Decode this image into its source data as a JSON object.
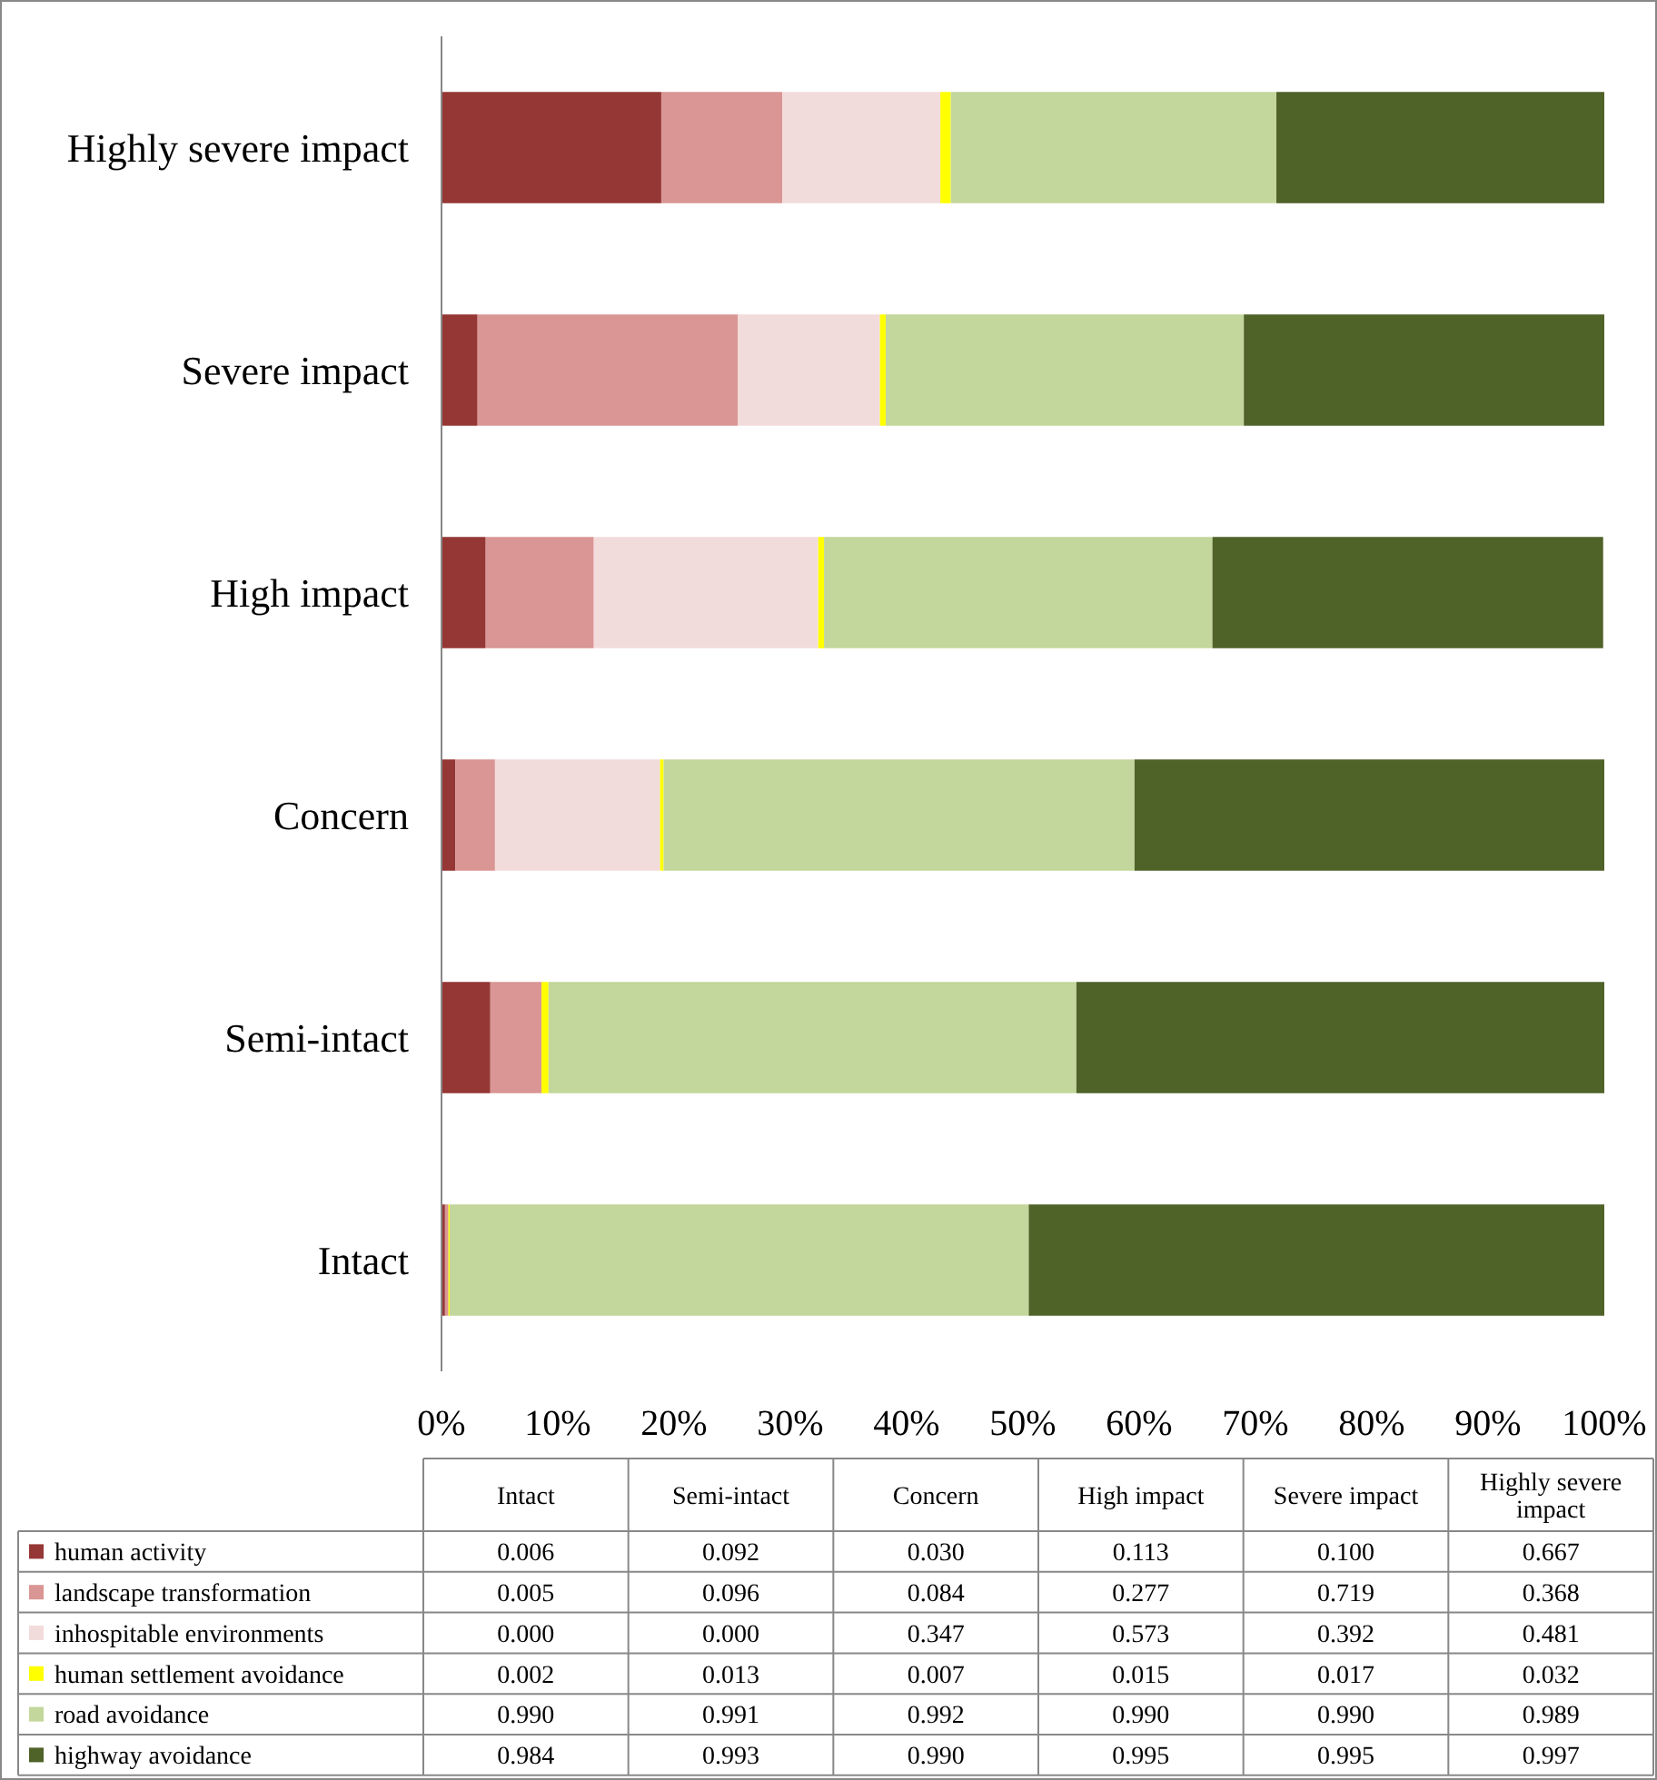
{
  "chart_data": [
    {
      "type": "bar",
      "orientation": "horizontal",
      "stacked": true,
      "categories": [
        "Highly severe impact",
        "Severe impact",
        "High impact",
        "Concern",
        "Semi-intact",
        "Intact"
      ],
      "series": [
        {
          "color": "#953735",
          "values": [
            18.9,
            3.1,
            3.8,
            1.2,
            4.2,
            0.3
          ]
        },
        {
          "color": "#d99694",
          "values": [
            10.4,
            22.4,
            9.3,
            3.4,
            4.4,
            0.3
          ]
        },
        {
          "color": "#f2dcdb",
          "values": [
            13.6,
            12.2,
            19.3,
            14.2,
            0,
            0
          ]
        },
        {
          "color": "#ffff00",
          "values": [
            0.9,
            0.5,
            0.5,
            0.3,
            0.6,
            0.1
          ]
        },
        {
          "color": "#c3d69b",
          "values": [
            28.0,
            30.8,
            33.4,
            40.5,
            45.4,
            49.8
          ]
        },
        {
          "color": "#4f6228",
          "values": [
            28.2,
            31.0,
            33.6,
            40.4,
            45.4,
            49.5
          ]
        }
      ],
      "xlim": [
        0,
        100
      ],
      "xticks": [
        {
          "value": 0,
          "label": "0%"
        },
        {
          "value": 10,
          "label": "10%"
        },
        {
          "value": 20,
          "label": "20%"
        },
        {
          "value": 30,
          "label": "30%"
        },
        {
          "value": 40,
          "label": "40%"
        },
        {
          "value": 50,
          "label": "50%"
        },
        {
          "value": 60,
          "label": "60%"
        },
        {
          "value": 70,
          "label": "70%"
        },
        {
          "value": 80,
          "label": "80%"
        },
        {
          "value": 90,
          "label": "90%"
        },
        {
          "value": 100,
          "label": "100%"
        }
      ]
    },
    {
      "type": "other",
      "categories": [
        "Intact",
        "Semi-intact",
        "Concern",
        "High impact",
        "Severe impact",
        "Highly severe impact"
      ],
      "series": [
        {
          "name": "human activity",
          "color": "#953735",
          "values": [
            0.006,
            0.092,
            0.03,
            0.113,
            0.1,
            0.667
          ],
          "value_labels": [
            "0.006",
            "0.092",
            "0.030",
            "0.113",
            "0.100",
            "0.667"
          ]
        },
        {
          "name": "landscape transformation",
          "color": "#d99694",
          "values": [
            0.005,
            0.096,
            0.084,
            0.277,
            0.719,
            0.368
          ],
          "value_labels": [
            "0.005",
            "0.096",
            "0.084",
            "0.277",
            "0.719",
            "0.368"
          ]
        },
        {
          "name": "inhospitable environments",
          "color": "#f2dcdb",
          "values": [
            0.0,
            0.0,
            0.347,
            0.573,
            0.392,
            0.481
          ],
          "value_labels": [
            "0.000",
            "0.000",
            "0.347",
            "0.573",
            "0.392",
            "0.481"
          ]
        },
        {
          "name": "human settlement avoidance",
          "color": "#ffff00",
          "values": [
            0.002,
            0.013,
            0.007,
            0.015,
            0.017,
            0.032
          ],
          "value_labels": [
            "0.002",
            "0.013",
            "0.007",
            "0.015",
            "0.017",
            "0.032"
          ]
        },
        {
          "name": "road avoidance",
          "color": "#c3d69b",
          "values": [
            0.99,
            0.991,
            0.992,
            0.99,
            0.99,
            0.989
          ],
          "value_labels": [
            "0.990",
            "0.991",
            "0.992",
            "0.990",
            "0.990",
            "0.989"
          ]
        },
        {
          "name": "highway avoidance",
          "color": "#4f6228",
          "values": [
            0.984,
            0.993,
            0.99,
            0.995,
            0.995,
            0.997
          ],
          "value_labels": [
            "0.984",
            "0.993",
            "0.990",
            "0.995",
            "0.995",
            "0.997"
          ]
        }
      ]
    }
  ]
}
